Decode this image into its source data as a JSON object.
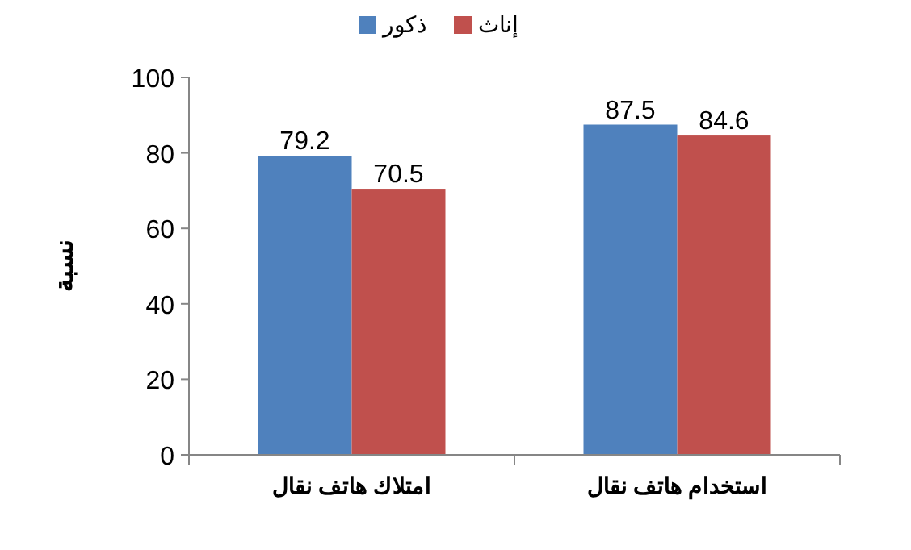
{
  "chart_data": {
    "type": "bar",
    "ylabel": "نسبة",
    "categories": [
      "امتلاك هاتف نقال",
      "استخدام هاتف نقال"
    ],
    "series": [
      {
        "name": "ذكور",
        "color": "#4f81bd",
        "values": [
          79.2,
          87.5
        ]
      },
      {
        "name": "إناث",
        "color": "#c0504d",
        "values": [
          70.5,
          84.6
        ]
      }
    ],
    "ylim": [
      0,
      100
    ],
    "yticks": [
      0,
      20,
      40,
      60,
      80,
      100
    ],
    "data_labels": true,
    "grid": false,
    "legend": "top"
  }
}
